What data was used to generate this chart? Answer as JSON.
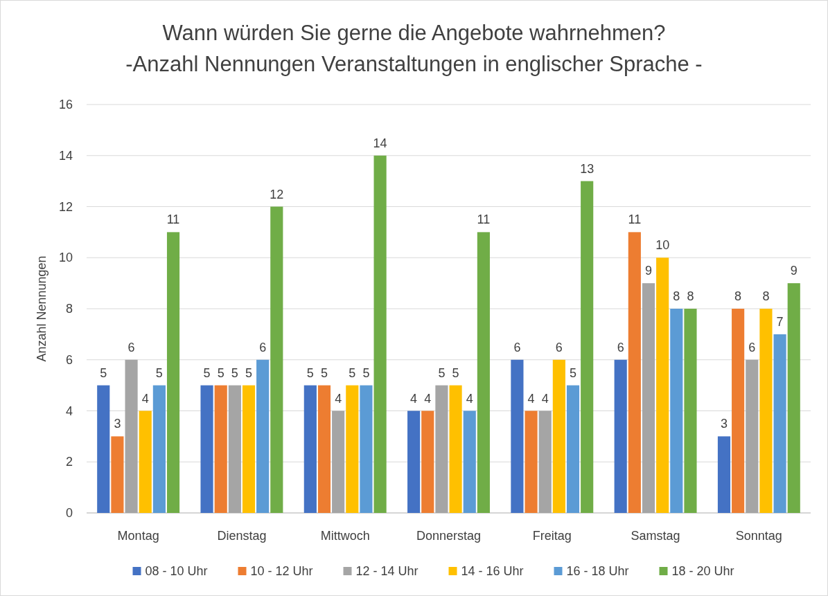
{
  "chart_data": {
    "type": "bar",
    "title": "Wann würden Sie gerne die Angebote wahrnehmen?\n-Anzahl Nennungen Veranstaltungen in englischer Sprache -",
    "ylabel": "Anzahl Nennungen",
    "categories": [
      "Montag",
      "Dienstag",
      "Mittwoch",
      "Donnerstag",
      "Freitag",
      "Samstag",
      "Sonntag"
    ],
    "series": [
      {
        "name": "08 - 10 Uhr",
        "color": "#4472c4",
        "values": [
          5,
          5,
          5,
          4,
          6,
          6,
          3
        ]
      },
      {
        "name": "10 - 12 Uhr",
        "color": "#ed7d31",
        "values": [
          3,
          5,
          5,
          4,
          4,
          11,
          8
        ]
      },
      {
        "name": "12 - 14 Uhr",
        "color": "#a5a5a5",
        "values": [
          6,
          5,
          4,
          5,
          4,
          9,
          6
        ]
      },
      {
        "name": "14 - 16 Uhr",
        "color": "#ffc000",
        "values": [
          4,
          5,
          5,
          5,
          6,
          10,
          8
        ]
      },
      {
        "name": "16 - 18 Uhr",
        "color": "#5b9bd5",
        "values": [
          5,
          6,
          5,
          4,
          5,
          8,
          7
        ]
      },
      {
        "name": "18 - 20 Uhr",
        "color": "#70ad47",
        "values": [
          11,
          12,
          14,
          11,
          13,
          8,
          9
        ]
      }
    ],
    "ylim": [
      0,
      16
    ],
    "yticks": [
      0,
      2,
      4,
      6,
      8,
      10,
      12,
      14,
      16
    ],
    "grid": "y",
    "legend": "bottom",
    "data_labels": true
  }
}
